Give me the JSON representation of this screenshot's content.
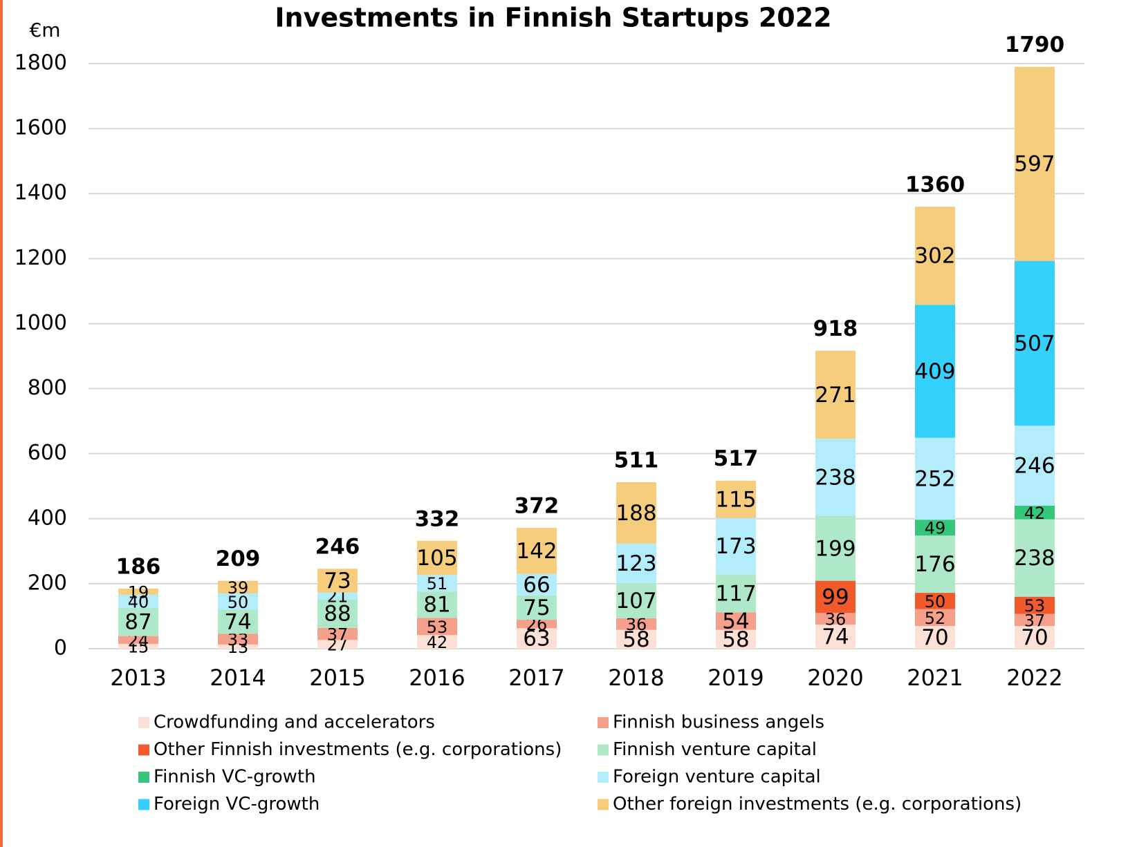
{
  "chart_data": {
    "type": "stacked_bar",
    "title": "Investments in Finnish Startups 2022",
    "y_label": "€m",
    "categories": [
      "2013",
      "2014",
      "2015",
      "2016",
      "2017",
      "2018",
      "2019",
      "2020",
      "2021",
      "2022"
    ],
    "series": [
      {
        "name": "Crowdfunding and accelerators",
        "color": "#fde0d6",
        "values": [
          15,
          13,
          27,
          42,
          63,
          58,
          58,
          74,
          70,
          70
        ]
      },
      {
        "name": "Finnish business angels",
        "color": "#f4a08a",
        "values": [
          24,
          33,
          37,
          53,
          26,
          36,
          54,
          36,
          52,
          37
        ]
      },
      {
        "name": "Other Finnish investments (e.g. corporations)",
        "color": "#f15a2b",
        "values": [
          null,
          null,
          null,
          null,
          null,
          null,
          null,
          99,
          50,
          53
        ]
      },
      {
        "name": "Finnish venture capital",
        "color": "#aee8c8",
        "values": [
          87,
          74,
          88,
          81,
          75,
          107,
          117,
          199,
          176,
          238
        ]
      },
      {
        "name": "Finnish VC-growth",
        "color": "#34c77b",
        "values": [
          null,
          null,
          null,
          null,
          null,
          null,
          null,
          null,
          49,
          42
        ]
      },
      {
        "name": "Foreign venture capital",
        "color": "#b3ecfb",
        "values": [
          40,
          50,
          21,
          51,
          66,
          123,
          173,
          238,
          252,
          246
        ]
      },
      {
        "name": "Foreign VC-growth",
        "color": "#33d1fb",
        "values": [
          null,
          null,
          null,
          null,
          null,
          null,
          null,
          null,
          409,
          507
        ]
      },
      {
        "name": "Other foreign investments (e.g. corporations)",
        "color": "#f5cd7d",
        "values": [
          19,
          39,
          73,
          105,
          142,
          188,
          115,
          271,
          302,
          597
        ]
      }
    ],
    "totals": [
      186,
      209,
      246,
      332,
      372,
      511,
      517,
      918,
      1360,
      1790
    ],
    "ylim": [
      0,
      1800
    ],
    "yticks": [
      0,
      200,
      400,
      600,
      800,
      1000,
      1200,
      1400,
      1600,
      1800
    ],
    "grid": true
  }
}
